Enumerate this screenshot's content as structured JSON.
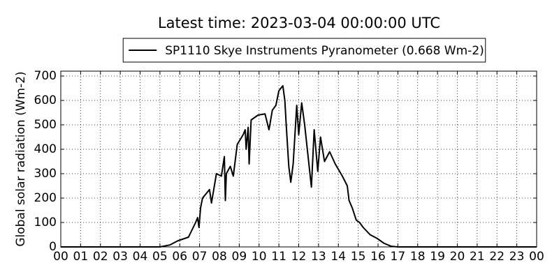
{
  "chart_data": {
    "type": "line",
    "title": "Latest time: 2023-03-04 00:00:00 UTC",
    "y_label": "Global solar radiation (Wm-2)",
    "legend": "upper center",
    "grid": true,
    "xlim": [
      0,
      24
    ],
    "ylim": [
      0,
      720
    ],
    "xticks": [
      {
        "value": 0,
        "label": "00"
      },
      {
        "value": 1,
        "label": "01"
      },
      {
        "value": 2,
        "label": "02"
      },
      {
        "value": 3,
        "label": "03"
      },
      {
        "value": 4,
        "label": "04"
      },
      {
        "value": 5,
        "label": "05"
      },
      {
        "value": 6,
        "label": "06"
      },
      {
        "value": 7,
        "label": "07"
      },
      {
        "value": 8,
        "label": "08"
      },
      {
        "value": 9,
        "label": "09"
      },
      {
        "value": 10,
        "label": "10"
      },
      {
        "value": 11,
        "label": "11"
      },
      {
        "value": 12,
        "label": "12"
      },
      {
        "value": 13,
        "label": "13"
      },
      {
        "value": 14,
        "label": "14"
      },
      {
        "value": 15,
        "label": "15"
      },
      {
        "value": 16,
        "label": "16"
      },
      {
        "value": 17,
        "label": "17"
      },
      {
        "value": 18,
        "label": "18"
      },
      {
        "value": 19,
        "label": "19"
      },
      {
        "value": 20,
        "label": "20"
      },
      {
        "value": 21,
        "label": "21"
      },
      {
        "value": 22,
        "label": "22"
      },
      {
        "value": 23,
        "label": "23"
      },
      {
        "value": 24,
        "label": "00"
      }
    ],
    "yticks": [
      0,
      100,
      200,
      300,
      400,
      500,
      600,
      700
    ],
    "x": [
      0,
      5.0,
      5.5,
      5.9,
      6.44,
      6.8,
      6.9,
      6.97,
      7.05,
      7.15,
      7.5,
      7.6,
      7.85,
      8.1,
      8.25,
      8.3,
      8.35,
      8.55,
      8.7,
      8.9,
      9.2,
      9.3,
      9.35,
      9.45,
      9.5,
      9.6,
      9.95,
      10.3,
      10.5,
      10.67,
      10.85,
      11.0,
      11.2,
      11.3,
      11.37,
      11.5,
      11.6,
      11.72,
      11.9,
      12.0,
      12.15,
      12.3,
      12.5,
      12.64,
      12.78,
      12.96,
      13.1,
      13.3,
      13.56,
      13.84,
      14.2,
      14.45,
      14.54,
      14.7,
      14.9,
      15.07,
      15.25,
      15.6,
      15.95,
      16.3,
      16.65,
      17.0,
      24
    ],
    "series": [
      {
        "name": "SP1110 Skye Instruments Pyranometer (0.668 Wm-2)",
        "color": "#000000",
        "values": [
          0,
          0,
          8,
          25,
          40,
          100,
          120,
          80,
          160,
          200,
          235,
          180,
          300,
          290,
          370,
          190,
          300,
          330,
          290,
          420,
          460,
          480,
          400,
          490,
          340,
          520,
          540,
          545,
          480,
          560,
          580,
          640,
          660,
          600,
          500,
          330,
          265,
          340,
          580,
          460,
          590,
          500,
          350,
          245,
          480,
          310,
          450,
          350,
          390,
          340,
          290,
          250,
          190,
          160,
          110,
          100,
          80,
          50,
          35,
          15,
          3,
          0,
          0
        ]
      }
    ]
  }
}
